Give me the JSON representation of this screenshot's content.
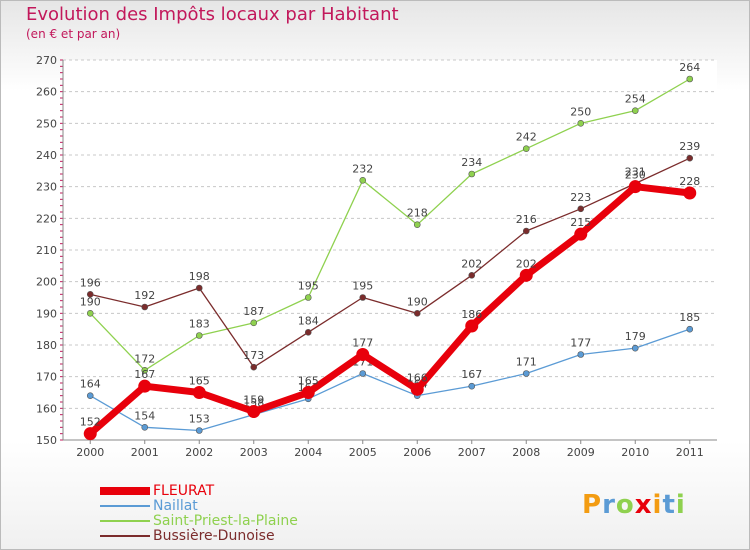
{
  "header": {
    "title": "Evolution des Impôts locaux par Habitant",
    "subtitle": "(en € et par an)"
  },
  "logo": {
    "text": "Proxiti"
  },
  "chart_data": {
    "type": "line",
    "title": "Evolution des Impôts locaux par Habitant",
    "subtitle": "(en € et par an)",
    "xlabel": "",
    "ylabel": "",
    "ylim": [
      150,
      270
    ],
    "yticks": [
      150,
      160,
      170,
      180,
      190,
      200,
      210,
      220,
      230,
      240,
      250,
      260,
      270
    ],
    "categories": [
      "2000",
      "2001",
      "2002",
      "2003",
      "2004",
      "2005",
      "2006",
      "2007",
      "2008",
      "2009",
      "2010",
      "2011"
    ],
    "grid": "horizontal dashed",
    "legend_position": "bottom-left",
    "series": [
      {
        "name": "FLEURAT",
        "color": "#e8000b",
        "emphasis": "thick",
        "values": [
          152,
          167,
          165,
          159,
          165,
          177,
          166,
          186,
          202,
          215,
          230,
          228
        ],
        "labels": [
          "152",
          "167",
          "165",
          "159",
          "165",
          "177",
          "166",
          "186",
          "202",
          "215",
          "230",
          "228"
        ]
      },
      {
        "name": "Naillat",
        "color": "#5b9bd5",
        "emphasis": "thin",
        "values": [
          164,
          154,
          153,
          158,
          163,
          171,
          164,
          167,
          171,
          177,
          179,
          185
        ],
        "labels": [
          "164",
          "154",
          "153",
          "158",
          "163",
          "171",
          "164",
          "167",
          "171",
          "177",
          "179",
          "185"
        ]
      },
      {
        "name": "Saint-Priest-la-Plaine",
        "color": "#8fd14f",
        "emphasis": "thin",
        "values": [
          190,
          172,
          183,
          187,
          195,
          232,
          218,
          234,
          242,
          250,
          254,
          264
        ],
        "labels": [
          "190",
          "172",
          "183",
          "187",
          "195",
          "232",
          "218",
          "234",
          "242",
          "250",
          "254",
          "264"
        ]
      },
      {
        "name": "Bussière-Dunoise",
        "color": "#7b2c2c",
        "emphasis": "thin",
        "values": [
          196,
          192,
          198,
          173,
          184,
          195,
          190,
          202,
          216,
          223,
          231,
          239
        ],
        "labels": [
          "196",
          "192",
          "198",
          "173",
          "184",
          "195",
          "190",
          "202",
          "216",
          "223",
          "231",
          "239"
        ]
      }
    ]
  }
}
